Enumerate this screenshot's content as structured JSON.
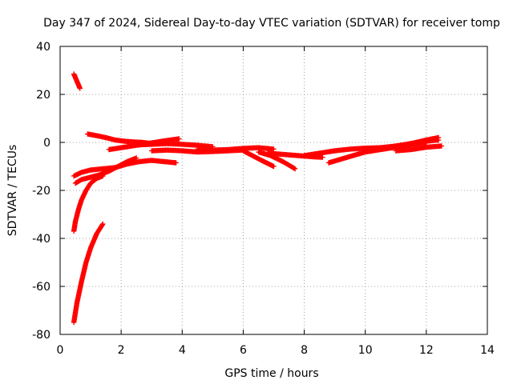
{
  "chart_data": {
    "type": "scatter",
    "title": "Day 347 of 2024, Sidereal Day-to-day VTEC variation (SDTVAR) for receiver tomp",
    "xlabel": "GPS time / hours",
    "ylabel": "SDTVAR / TECUs",
    "xlim": [
      0,
      14
    ],
    "ylim": [
      -80,
      40
    ],
    "xticks": [
      "0",
      "2",
      "4",
      "6",
      "8",
      "10",
      "12",
      "14"
    ],
    "yticks": [
      "-80",
      "-60",
      "-40",
      "-20",
      "0",
      "20",
      "40"
    ],
    "grid": true,
    "marker": "plus",
    "color": "#ff0000",
    "series": [
      {
        "x": [
          0.45,
          0.5,
          0.55,
          0.6,
          0.65
        ],
        "y": [
          28.5,
          27,
          25.5,
          24,
          22.5
        ]
      },
      {
        "x": [
          0.45,
          0.55,
          0.7,
          0.85,
          1.0,
          1.2,
          1.4
        ],
        "y": [
          -75,
          -67,
          -58,
          -50,
          -44,
          -38,
          -34
        ]
      },
      {
        "x": [
          0.45,
          0.5,
          0.6,
          0.7,
          0.85,
          1.0,
          1.2,
          1.4
        ],
        "y": [
          -37,
          -33,
          -28,
          -24,
          -20,
          -17,
          -15,
          -14
        ]
      },
      {
        "x": [
          0.5,
          0.7,
          1.0,
          1.3,
          1.6,
          1.9,
          2.2,
          2.5
        ],
        "y": [
          -17,
          -15.5,
          -14.5,
          -13.5,
          -12,
          -10,
          -8,
          -6.5
        ]
      },
      {
        "x": [
          0.45,
          0.7,
          1.0,
          1.4,
          1.8,
          2.2,
          2.6,
          3.0,
          3.4,
          3.8
        ],
        "y": [
          -14,
          -12.5,
          -11.5,
          -11,
          -10.5,
          -9,
          -8,
          -7.5,
          -8,
          -8.5
        ]
      },
      {
        "x": [
          0.9,
          1.2,
          1.5,
          1.8,
          2.1,
          2.4,
          2.7,
          3.0
        ],
        "y": [
          3.5,
          2.8,
          2.0,
          1.0,
          0.5,
          0.2,
          0.0,
          -0.5
        ]
      },
      {
        "x": [
          1.6,
          2.0,
          2.5,
          3.0,
          3.5,
          3.9
        ],
        "y": [
          -3,
          -2.2,
          -1.2,
          -0.2,
          0.8,
          1.5
        ]
      },
      {
        "x": [
          3.0,
          3.5,
          4.0,
          4.5,
          5.0,
          5.5,
          6.0
        ],
        "y": [
          -3.5,
          -3.2,
          -3.5,
          -4.0,
          -3.8,
          -3.5,
          -3.2
        ]
      },
      {
        "x": [
          2.6,
          3.0,
          3.5,
          4.0,
          4.5,
          5.0
        ],
        "y": [
          -1.0,
          -0.8,
          -0.5,
          -0.8,
          -1.2,
          -1.8
        ]
      },
      {
        "x": [
          4.5,
          5.0,
          5.5,
          6.0,
          6.5,
          7.0
        ],
        "y": [
          -2.8,
          -3.2,
          -3.0,
          -2.5,
          -2.2,
          -2.8
        ]
      },
      {
        "x": [
          6.0,
          6.3,
          6.6,
          7.0
        ],
        "y": [
          -3.5,
          -5.5,
          -7.5,
          -10.0
        ]
      },
      {
        "x": [
          6.5,
          6.9,
          7.3,
          7.7
        ],
        "y": [
          -4.0,
          -5.5,
          -8.0,
          -11.0
        ]
      },
      {
        "x": [
          6.8,
          7.3,
          7.8,
          8.3,
          8.6
        ],
        "y": [
          -4.5,
          -5.0,
          -5.5,
          -6.0,
          -6.2
        ]
      },
      {
        "x": [
          8.0,
          8.5,
          9.0,
          9.5,
          10.0,
          10.5
        ],
        "y": [
          -5.5,
          -4.5,
          -3.5,
          -2.8,
          -2.4,
          -2.2
        ]
      },
      {
        "x": [
          8.8,
          9.2,
          9.6,
          10.0,
          10.5,
          11.0,
          11.5,
          12.0
        ],
        "y": [
          -8.5,
          -7.0,
          -5.5,
          -4.0,
          -3.0,
          -2.0,
          -1.0,
          -0.2
        ]
      },
      {
        "x": [
          10.0,
          10.5,
          11.0,
          11.5,
          12.0,
          12.4
        ],
        "y": [
          -3.0,
          -2.2,
          -1.5,
          -0.5,
          0.5,
          1.0
        ]
      },
      {
        "x": [
          10.8,
          11.2,
          11.6,
          12.0,
          12.4
        ],
        "y": [
          -2.0,
          -1.2,
          -0.2,
          1.0,
          2.0
        ]
      },
      {
        "x": [
          11.0,
          11.5,
          12.0,
          12.5
        ],
        "y": [
          -3.5,
          -3.0,
          -2.0,
          -1.5
        ]
      }
    ]
  }
}
